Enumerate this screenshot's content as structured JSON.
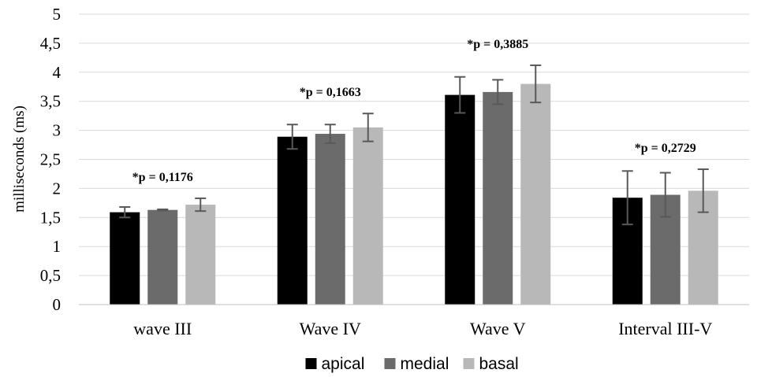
{
  "chart_data": {
    "type": "bar",
    "title": "",
    "xlabel": "",
    "ylabel": "milliseconds (ms)",
    "ylim": [
      0,
      5
    ],
    "yticks": [
      "0",
      "0,5",
      "1",
      "1,5",
      "2",
      "2,5",
      "3",
      "3,5",
      "4",
      "4,5",
      "5"
    ],
    "grid": true,
    "legend_position": "bottom",
    "categories": [
      "wave III",
      "Wave IV",
      "Wave V",
      "Interval III-V"
    ],
    "series": [
      {
        "name": "apical",
        "color": "#000000",
        "values": [
          1.59,
          2.89,
          3.61,
          1.84
        ],
        "error": [
          0.09,
          0.21,
          0.31,
          0.46
        ]
      },
      {
        "name": "medial",
        "color": "#6b6b6b",
        "values": [
          1.63,
          2.94,
          3.66,
          1.89
        ],
        "error": [
          0.01,
          0.16,
          0.21,
          0.38
        ]
      },
      {
        "name": "basal",
        "color": "#b8b8b8",
        "values": [
          1.72,
          3.05,
          3.8,
          1.96
        ],
        "error": [
          0.11,
          0.24,
          0.32,
          0.37
        ]
      }
    ],
    "annotations": [
      "*p = 0,1176",
      "*p = 0,1663",
      "*p = 0,3885",
      "*p = 0,2729"
    ]
  }
}
